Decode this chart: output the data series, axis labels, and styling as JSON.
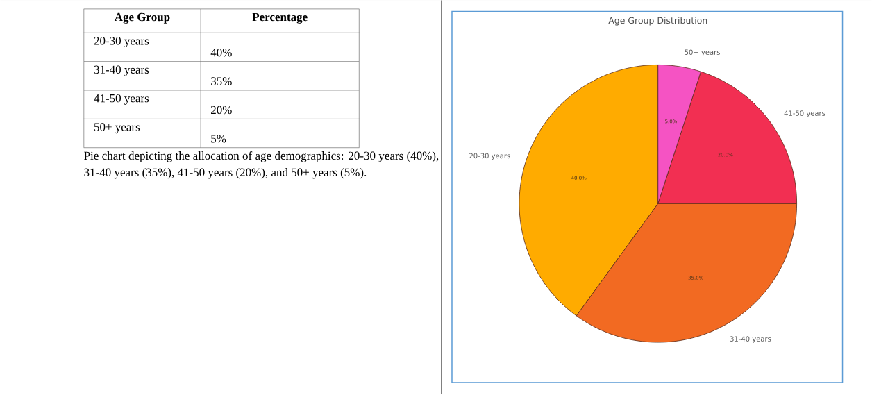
{
  "chart_data": [
    {
      "type": "other",
      "xlabel": "Age Group",
      "ylabel": "Percentage",
      "categories": [
        "20-30 years",
        "31-40 years",
        "41-50 years",
        "50+ years"
      ],
      "value_labels": [
        "40%",
        "35%",
        "20%",
        "5%"
      ],
      "annotations": [
        "Pie chart depicting the allocation of age demographics: 20-30 years (40%), 31-40 years (35%), 41-50 years (20%), and 50+ years (5%)."
      ]
    },
    {
      "type": "pie",
      "title": "Age Group Distribution",
      "categories": [
        "20-30 years",
        "31-40 years",
        "41-50 years",
        "50+ years"
      ],
      "values": [
        40,
        35,
        20,
        5
      ],
      "colors": [
        "#ffab00",
        "#f26a22",
        "#f22f52",
        "#f553c3"
      ],
      "value_labels": [
        "40.0%",
        "35.0%",
        "20.0%",
        "5.0%"
      ]
    }
  ]
}
